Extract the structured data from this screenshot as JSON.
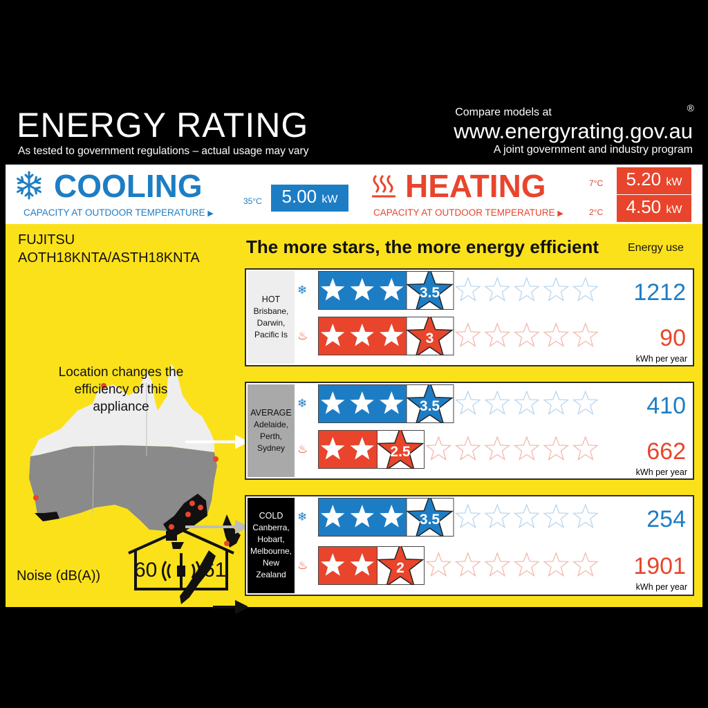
{
  "header": {
    "title": "ENERGY RATING",
    "subtitle": "As tested to government regulations – actual usage may vary",
    "compare": "Compare models at",
    "url": "www.energyrating.gov.au",
    "program": "A joint government and industry program",
    "registered": "®"
  },
  "cooling": {
    "label": "COOLING",
    "sub": "CAPACITY AT OUTDOOR TEMPERATURE",
    "temp": "35°C",
    "value": "5.00",
    "unit": "kW",
    "color": "#1d7dc4"
  },
  "heating": {
    "label": "HEATING",
    "sub": "CAPACITY AT OUTDOOR TEMPERATURE",
    "temp1": "7°C",
    "value1": "5.20",
    "temp2": "2°C",
    "value2": "4.50",
    "unit": "kW",
    "color": "#e8452c"
  },
  "brand": {
    "name": "FUJITSU",
    "model": "AOTH18KNTA/ASTH18KNTA"
  },
  "headline": "The more stars, the more energy efficient",
  "energy_use_label": "Energy use",
  "kwh_unit": "kWh per year",
  "map_text": "Location changes the efficiency of this appliance",
  "zones": [
    {
      "name": "HOT",
      "cities": [
        "Brisbane,",
        "Darwin,",
        "Pacific Is"
      ],
      "cooling": {
        "stars": 3.5,
        "label": "3.5",
        "kwh": "1212"
      },
      "heating": {
        "stars": 3,
        "label": "3",
        "kwh": "90"
      }
    },
    {
      "name": "AVERAGE",
      "cities": [
        "Adelaide,",
        "Perth,",
        "Sydney"
      ],
      "cooling": {
        "stars": 3.5,
        "label": "3.5",
        "kwh": "410"
      },
      "heating": {
        "stars": 2.5,
        "label": "2.5",
        "kwh": "662"
      }
    },
    {
      "name": "COLD",
      "cities": [
        "Canberra,",
        "Hobart,",
        "Melbourne,",
        "New Zealand"
      ],
      "cooling": {
        "stars": 3.5,
        "label": "3.5",
        "kwh": "254"
      },
      "heating": {
        "stars": 2,
        "label": "2",
        "kwh": "1901"
      }
    }
  ],
  "noise": {
    "label": "Noise (dB(A))",
    "indoor": "60",
    "outdoor": "61"
  },
  "icons": {
    "cooling": "snowflake-icon",
    "heating": "heat-waves-icon",
    "house": "house-speaker-icon"
  },
  "colors": {
    "yellow": "#fbe11a",
    "blue": "#1d7dc4",
    "red": "#e8452c",
    "grey": "#a9a9a9"
  }
}
